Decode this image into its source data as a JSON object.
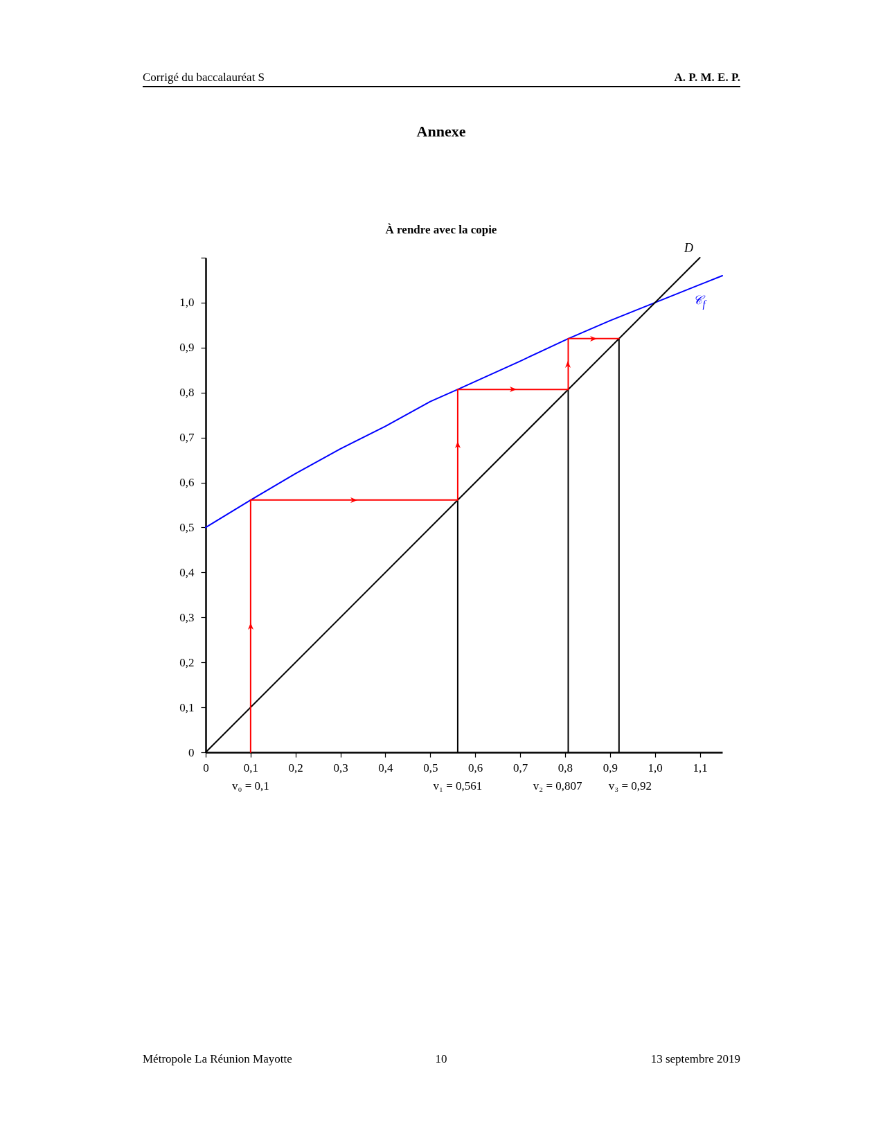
{
  "chart_data": {
    "type": "line",
    "title": "Annexe",
    "subtitle": "À rendre avec la copie",
    "xlim": [
      0,
      1.15
    ],
    "ylim": [
      0,
      1.1
    ],
    "xticks": [
      0,
      {
        "value": 0.1,
        "label": "0,1"
      },
      {
        "value": 0.2,
        "label": "0,2"
      },
      {
        "value": 0.3,
        "label": "0,3"
      },
      {
        "value": 0.4,
        "label": "0,4"
      },
      {
        "value": 0.5,
        "label": "0,5"
      },
      {
        "value": 0.6,
        "label": "0,6"
      },
      {
        "value": 0.7,
        "label": "0,7"
      },
      {
        "value": 0.8,
        "label": "0,8"
      },
      {
        "value": 0.9,
        "label": "0,9"
      },
      {
        "value": 1,
        "label": "1,0"
      },
      {
        "value": 1.1,
        "label": "1,1"
      }
    ],
    "yticks": [
      0,
      {
        "value": 0.1,
        "label": "0,1"
      },
      {
        "value": 0.2,
        "label": "0,2"
      },
      {
        "value": 0.3,
        "label": "0,3"
      },
      {
        "value": 0.4,
        "label": "0,4"
      },
      {
        "value": 0.5,
        "label": "0,5"
      },
      {
        "value": 0.6,
        "label": "0,6"
      },
      {
        "value": 0.7,
        "label": "0,7"
      },
      {
        "value": 0.8,
        "label": "0,8"
      },
      {
        "value": 0.9,
        "label": "0,9"
      },
      {
        "value": 1,
        "label": "1,0"
      },
      {
        "value": 1.1,
        "label": null
      }
    ],
    "series": [
      {
        "name": "𝒞$_{f}$",
        "color": "#0000ff",
        "x": [
          0,
          0.1,
          0.2,
          0.3,
          0.4,
          0.5,
          0.561,
          0.7,
          0.807,
          0.9,
          1,
          1.1,
          1.15
        ],
        "values": [
          0.5,
          0.561,
          0.62,
          0.675,
          0.725,
          0.78,
          0.807,
          0.87,
          0.92,
          0.96,
          1,
          1.04,
          1.06
        ]
      },
      {
        "name": "D",
        "color": "#000000",
        "x": [
          0,
          1.1
        ],
        "values": [
          0,
          1.1
        ]
      },
      {
        "color": "#000000",
        "x": [
          0.561,
          0.561
        ],
        "values": [
          0,
          0.561
        ]
      },
      {
        "color": "#000000",
        "x": [
          0.807,
          0.807
        ],
        "values": [
          0,
          0.807
        ]
      },
      {
        "color": "#000000",
        "x": [
          0.92,
          0.92
        ],
        "values": [
          0,
          0.92
        ]
      },
      {
        "color": "#ff0000",
        "x": [
          0.1,
          0.1,
          0.561,
          0.561,
          0.807,
          0.807,
          0.92
        ],
        "values": [
          0,
          0.561,
          0.561,
          0.807,
          0.807,
          0.92,
          0.92
        ]
      }
    ],
    "annotations": [
      "Corrigé du baccalauréat S",
      "A. P. M. E. P.",
      "Métropole La Réunion Mayotte",
      "10",
      "13 septembre 2019",
      {
        "text": "v₀ = 0,1",
        "x": 0.1,
        "y": 0
      },
      {
        "text": "v₁ = 0,561",
        "x": 0.561,
        "y": 0
      },
      {
        "text": "v₂ = 0,807",
        "x": 0.807,
        "y": 0
      },
      {
        "text": "v₃ = 0,92",
        "x": 0.92,
        "y": 0
      }
    ]
  }
}
